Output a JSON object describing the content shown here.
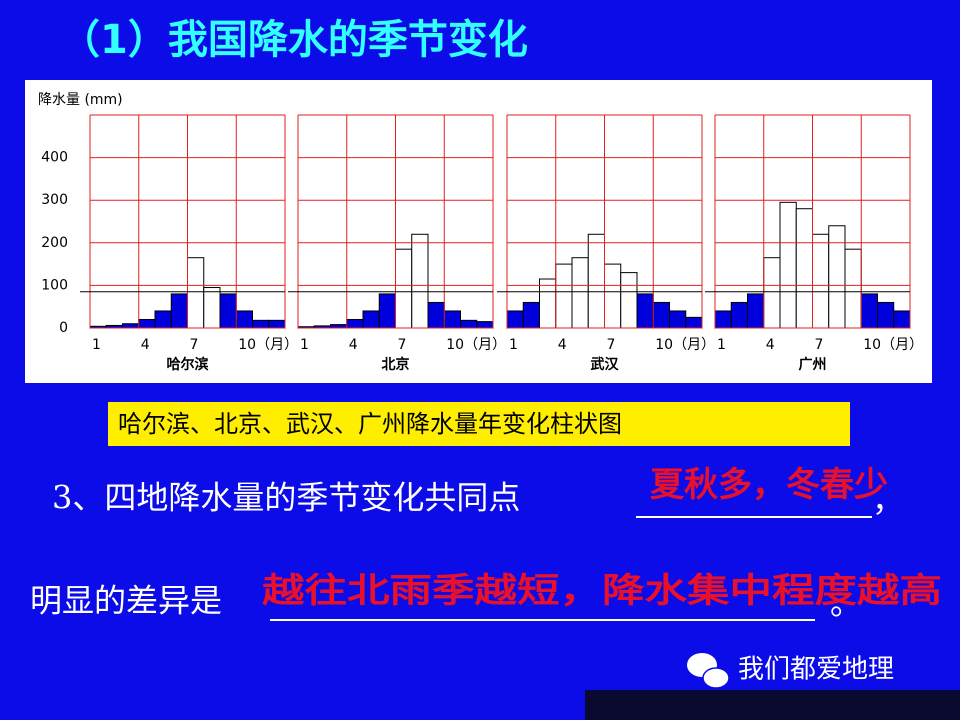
{
  "title": "（1）我国降水的季节变化",
  "chart_data": [
    {
      "type": "bar",
      "title": "哈尔滨",
      "y_label": "降水量 (mm)",
      "categories": [
        "1",
        null,
        null,
        "4",
        null,
        null,
        "7",
        null,
        null,
        "10（月）",
        null,
        null
      ],
      "values": [
        4,
        6,
        10,
        20,
        40,
        80,
        165,
        95,
        80,
        40,
        18,
        18
      ],
      "colors": [
        "#0000dd",
        "#0000dd",
        "#0000dd",
        "#0000dd",
        "#0000dd",
        "#0000dd",
        "#ffffff",
        "#ffffff",
        "#0000dd",
        "#0000dd",
        "#0000dd",
        "#0000dd"
      ],
      "ylim": [
        0,
        500
      ],
      "yticks": [
        0,
        100,
        200,
        300,
        400
      ],
      "reference_line": 85,
      "grid": true
    },
    {
      "type": "bar",
      "title": "北京",
      "categories": [
        "1",
        null,
        null,
        "4",
        null,
        null,
        "7",
        null,
        null,
        "10（月）",
        null,
        null
      ],
      "values": [
        3,
        5,
        8,
        20,
        40,
        80,
        185,
        220,
        60,
        40,
        18,
        15
      ],
      "colors": [
        "#0000dd",
        "#0000dd",
        "#0000dd",
        "#0000dd",
        "#0000dd",
        "#0000dd",
        "#ffffff",
        "#ffffff",
        "#0000dd",
        "#0000dd",
        "#0000dd",
        "#0000dd"
      ],
      "ylim": [
        0,
        500
      ],
      "reference_line": 85,
      "grid": true
    },
    {
      "type": "bar",
      "title": "武汉",
      "categories": [
        "1",
        null,
        null,
        "4",
        null,
        null,
        "7",
        null,
        null,
        "10（月）",
        null,
        null
      ],
      "values": [
        40,
        60,
        115,
        150,
        165,
        220,
        150,
        130,
        80,
        60,
        40,
        25
      ],
      "colors": [
        "#0000dd",
        "#0000dd",
        "#ffffff",
        "#ffffff",
        "#ffffff",
        "#ffffff",
        "#ffffff",
        "#ffffff",
        "#0000dd",
        "#0000dd",
        "#0000dd",
        "#0000dd"
      ],
      "ylim": [
        0,
        500
      ],
      "reference_line": 85,
      "grid": true
    },
    {
      "type": "bar",
      "title": "广州",
      "categories": [
        "1",
        null,
        null,
        "4",
        null,
        null,
        "7",
        null,
        null,
        "10（月）",
        null,
        null
      ],
      "values": [
        40,
        60,
        80,
        165,
        295,
        280,
        220,
        240,
        185,
        80,
        60,
        40
      ],
      "colors": [
        "#0000dd",
        "#0000dd",
        "#0000dd",
        "#ffffff",
        "#ffffff",
        "#ffffff",
        "#ffffff",
        "#ffffff",
        "#ffffff",
        "#0000dd",
        "#0000dd",
        "#0000dd"
      ],
      "ylim": [
        0,
        500
      ],
      "reference_line": 85,
      "grid": true
    }
  ],
  "caption": "哈尔滨、北京、武汉、广州降水量年变化柱状图",
  "question": {
    "q1": "3、四地降水量的季节变化共同点",
    "q1_answer": "夏秋多，冬春少",
    "q1_end": "，",
    "q2": "明显的差异是",
    "q2_answer": "越往北雨季越短，降水集中程度越高",
    "q2_end": "。"
  },
  "watermark": "我们都爱地理"
}
